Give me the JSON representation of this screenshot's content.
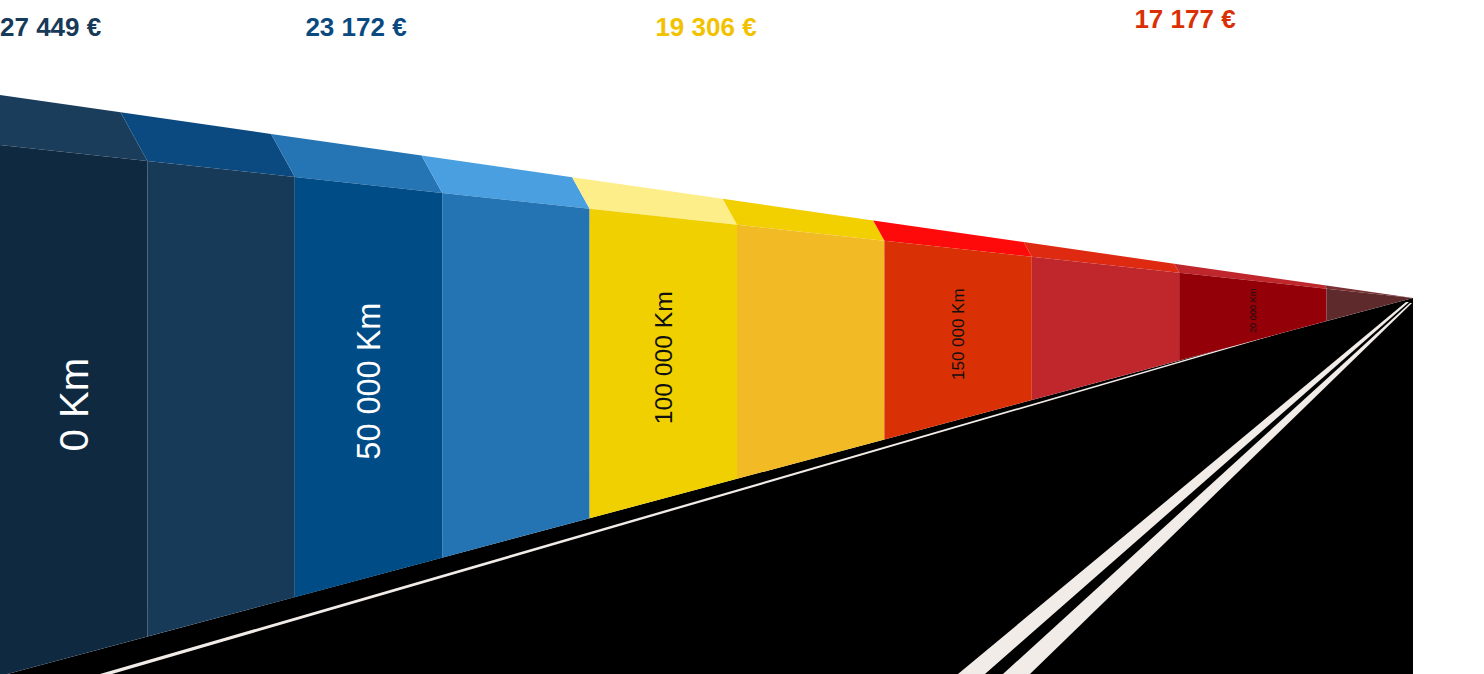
{
  "chart_data": {
    "type": "road",
    "categories": [
      "0 Km",
      null,
      "50 000 Km",
      null,
      "100 000 Km",
      null,
      "150 000 Km",
      null,
      "20 000 Km",
      null
    ],
    "colors": [
      "#0f2a40",
      "#173a59",
      "#004c87",
      "#2474b3",
      "#f0d000",
      "#f2bb26",
      "#d93005",
      "#c0272d",
      "#930008",
      "#5e2a2b"
    ],
    "prices": {
      "values": [
        27449,
        23172,
        19306,
        17177
      ],
      "value_labels": [
        "27 449 €",
        "23 172 €",
        "19 306 €",
        "17 177 €"
      ],
      "colors": [
        "#173a59",
        "#0a4a80",
        "#f2c200",
        "#d93005"
      ]
    }
  }
}
